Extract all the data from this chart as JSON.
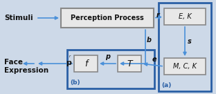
{
  "fig_width": 3.12,
  "fig_height": 1.36,
  "dpi": 100,
  "bg_light_blue": "#cdd9e8",
  "box_blue_border": "#2a5fa5",
  "box_gray_bg": "#e8e8e8",
  "box_gray_border": "#888888",
  "arrow_blue": "#4a90d9",
  "text_dark": "#111111",
  "text_blue_label": "#2a5fa5",
  "stimuli_text": "Stimuli",
  "face_exp_text1": "Face",
  "face_exp_text2": "Expression",
  "perception_text": "Perception Process",
  "f_text": "f",
  "T_text": "T",
  "EK_text": "E, K",
  "MCK_text": "M, C, K",
  "label_a": "(a)",
  "label_b_box": "(b)",
  "label_r": "r",
  "label_b": "b",
  "label_s": "s",
  "label_e": "e",
  "label_p": "p"
}
